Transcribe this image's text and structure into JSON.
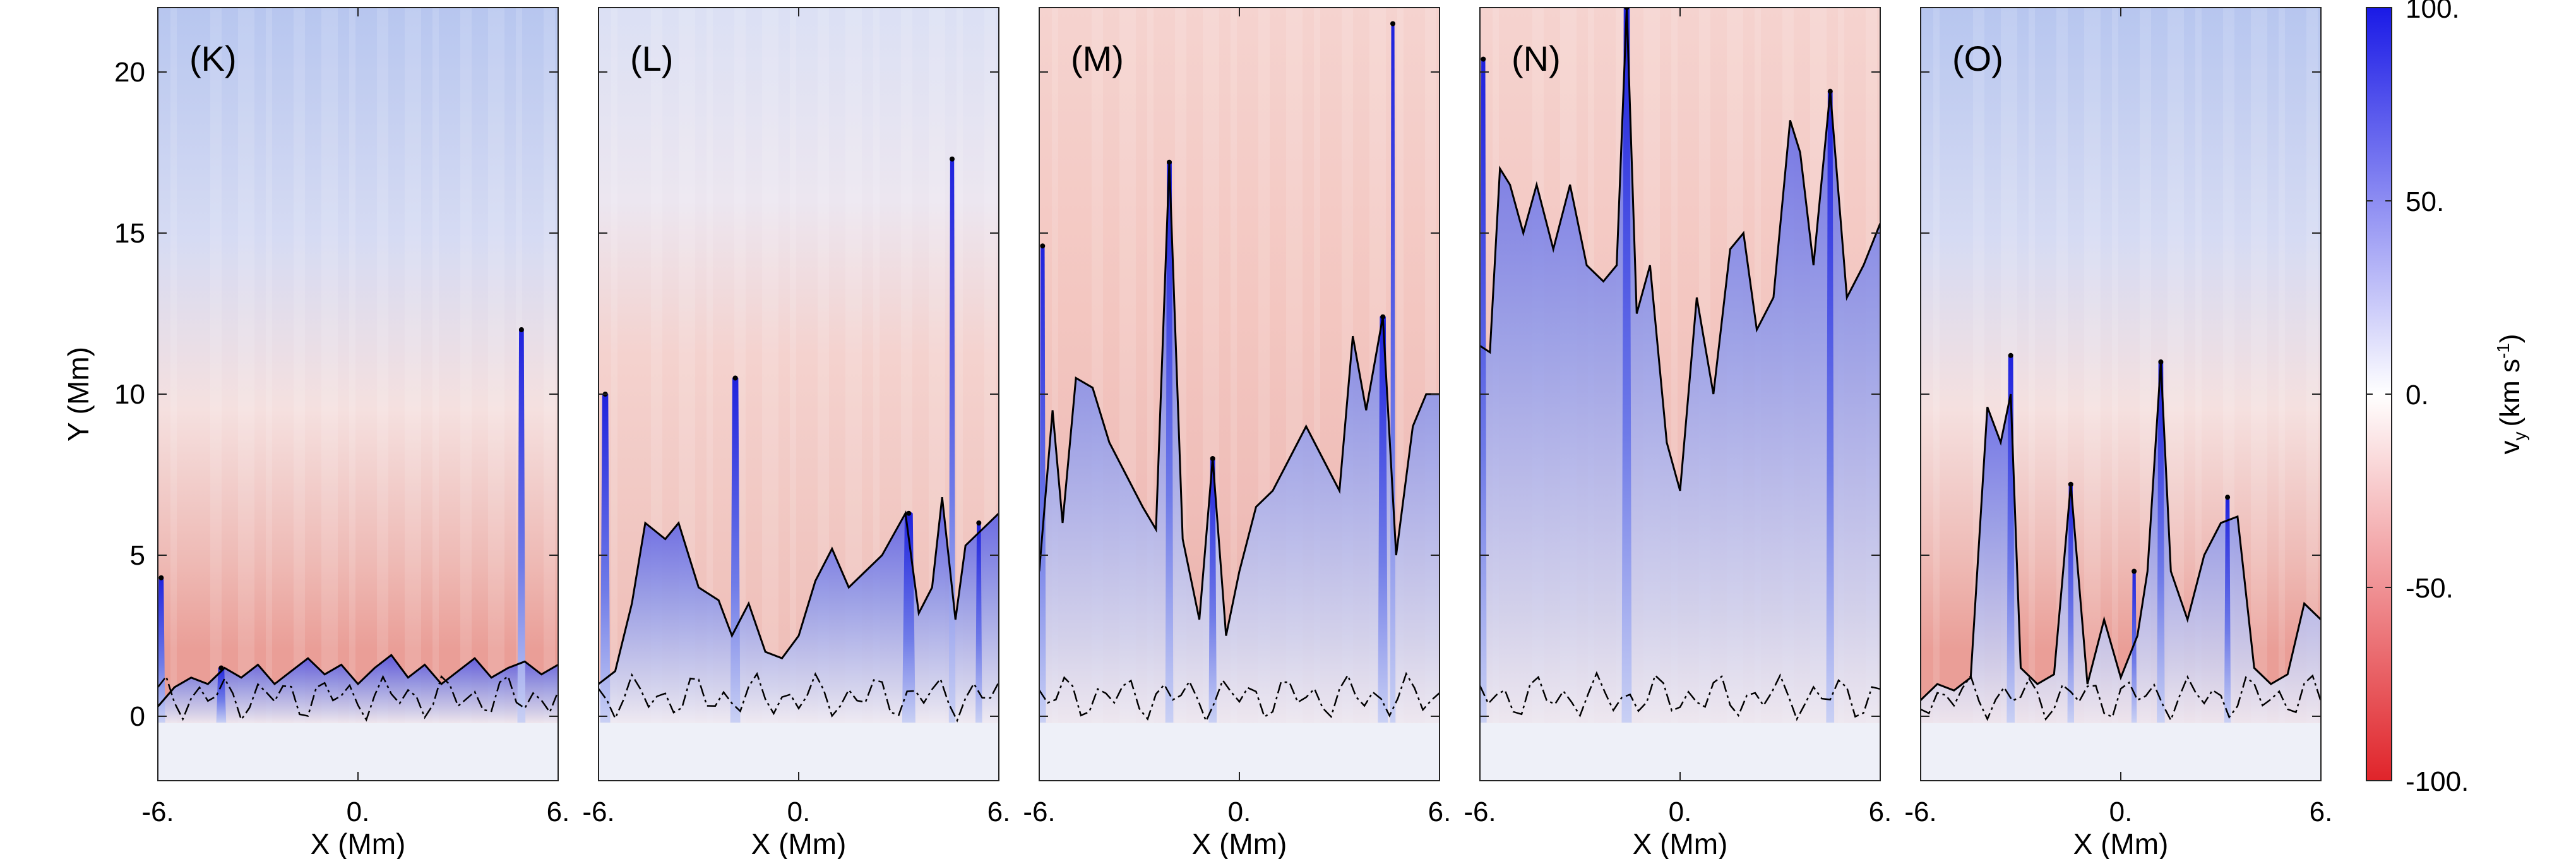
{
  "chart_data": {
    "type": "heatmap",
    "xlabel": "X (Mm)",
    "ylabel": "Y (Mm)",
    "xlim": [
      -6,
      6
    ],
    "ylim": [
      -2,
      22
    ],
    "x_ticks": [
      -6,
      0,
      6
    ],
    "x_tick_labels": [
      "-6.",
      "0.",
      "6."
    ],
    "y_ticks": [
      0,
      5,
      10,
      15,
      20
    ],
    "y_tick_labels": [
      "0",
      "5",
      "10",
      "15",
      "20"
    ],
    "panels": [
      {
        "label": "(K)",
        "top_hue": "blue",
        "boundary": [
          [
            -6,
            0.3
          ],
          [
            -5.5,
            0.9
          ],
          [
            -5,
            1.2
          ],
          [
            -4.5,
            1.0
          ],
          [
            -4,
            1.5
          ],
          [
            -3.5,
            1.2
          ],
          [
            -3,
            1.6
          ],
          [
            -2.5,
            1.0
          ],
          [
            -2,
            1.4
          ],
          [
            -1.5,
            1.8
          ],
          [
            -1,
            1.3
          ],
          [
            -0.5,
            1.6
          ],
          [
            0,
            1.0
          ],
          [
            0.5,
            1.5
          ],
          [
            1,
            1.9
          ],
          [
            1.5,
            1.2
          ],
          [
            2,
            1.6
          ],
          [
            2.5,
            1.0
          ],
          [
            3,
            1.4
          ],
          [
            3.5,
            1.8
          ],
          [
            4,
            1.2
          ],
          [
            4.5,
            1.5
          ],
          [
            5,
            1.7
          ],
          [
            5.5,
            1.3
          ],
          [
            6,
            1.6
          ]
        ],
        "jets": [
          [
            -5.9,
            4.3,
            0.12
          ],
          [
            -4.1,
            1.5,
            0.15
          ],
          [
            4.9,
            12.0,
            0.12
          ]
        ]
      },
      {
        "label": "(L)",
        "top_hue": "mixed",
        "boundary": [
          [
            -6,
            1.0
          ],
          [
            -5.5,
            1.4
          ],
          [
            -5,
            3.5
          ],
          [
            -4.6,
            6.0
          ],
          [
            -4,
            5.5
          ],
          [
            -3.6,
            6.0
          ],
          [
            -3,
            4.0
          ],
          [
            -2.4,
            3.6
          ],
          [
            -2,
            2.5
          ],
          [
            -1.5,
            3.5
          ],
          [
            -1,
            2.0
          ],
          [
            -0.5,
            1.8
          ],
          [
            0,
            2.5
          ],
          [
            0.5,
            4.2
          ],
          [
            1,
            5.2
          ],
          [
            1.5,
            4.0
          ],
          [
            2,
            4.5
          ],
          [
            2.5,
            5.0
          ],
          [
            3.2,
            6.3
          ],
          [
            3.6,
            3.2
          ],
          [
            4,
            4.0
          ],
          [
            4.3,
            6.8
          ],
          [
            4.7,
            3.0
          ],
          [
            5,
            5.3
          ],
          [
            5.5,
            5.8
          ],
          [
            6,
            6.3
          ]
        ],
        "jets": [
          [
            -5.8,
            10.0,
            0.15
          ],
          [
            -1.9,
            10.5,
            0.15
          ],
          [
            3.3,
            6.3,
            0.2
          ],
          [
            4.6,
            17.3,
            0.1
          ],
          [
            5.4,
            6.0,
            0.1
          ]
        ]
      },
      {
        "label": "(M)",
        "top_hue": "red",
        "boundary": [
          [
            -6,
            4.5
          ],
          [
            -5.6,
            9.5
          ],
          [
            -5.3,
            6.0
          ],
          [
            -4.9,
            10.5
          ],
          [
            -4.4,
            10.2
          ],
          [
            -3.9,
            8.5
          ],
          [
            -3.4,
            7.5
          ],
          [
            -2.9,
            6.5
          ],
          [
            -2.5,
            5.8
          ],
          [
            -2.1,
            17.2
          ],
          [
            -1.7,
            5.5
          ],
          [
            -1.2,
            3.0
          ],
          [
            -0.8,
            8.0
          ],
          [
            -0.4,
            2.5
          ],
          [
            0,
            4.5
          ],
          [
            0.5,
            6.5
          ],
          [
            1,
            7.0
          ],
          [
            1.5,
            8.0
          ],
          [
            2,
            9.0
          ],
          [
            2.5,
            8.0
          ],
          [
            3,
            7.0
          ],
          [
            3.4,
            11.8
          ],
          [
            3.8,
            9.5
          ],
          [
            4.3,
            12.4
          ],
          [
            4.7,
            5.0
          ],
          [
            5.2,
            9.0
          ],
          [
            5.6,
            10.0
          ],
          [
            6,
            10.0
          ]
        ],
        "jets": [
          [
            -5.9,
            14.6,
            0.1
          ],
          [
            -2.1,
            17.2,
            0.12
          ],
          [
            -0.8,
            8.0,
            0.12
          ],
          [
            4.3,
            12.4,
            0.15
          ],
          [
            4.6,
            21.5,
            0.08
          ]
        ]
      },
      {
        "label": "(N)",
        "top_hue": "red",
        "boundary": [
          [
            -6,
            11.5
          ],
          [
            -5.7,
            11.3
          ],
          [
            -5.4,
            17.0
          ],
          [
            -5.1,
            16.5
          ],
          [
            -4.7,
            15.0
          ],
          [
            -4.3,
            16.5
          ],
          [
            -3.8,
            14.5
          ],
          [
            -3.3,
            16.5
          ],
          [
            -2.8,
            14.0
          ],
          [
            -2.3,
            13.5
          ],
          [
            -1.9,
            14.0
          ],
          [
            -1.6,
            22.0
          ],
          [
            -1.3,
            12.5
          ],
          [
            -0.9,
            14.0
          ],
          [
            -0.4,
            8.5
          ],
          [
            0,
            7.0
          ],
          [
            0.5,
            13.0
          ],
          [
            1,
            10.0
          ],
          [
            1.5,
            14.5
          ],
          [
            1.9,
            15.0
          ],
          [
            2.3,
            12.0
          ],
          [
            2.8,
            13.0
          ],
          [
            3.3,
            18.5
          ],
          [
            3.6,
            17.5
          ],
          [
            4,
            14.0
          ],
          [
            4.5,
            19.4
          ],
          [
            5,
            13.0
          ],
          [
            5.5,
            14.0
          ],
          [
            6,
            15.3
          ]
        ],
        "jets": [
          [
            -5.9,
            20.4,
            0.1
          ],
          [
            -1.6,
            22.0,
            0.15
          ],
          [
            4.5,
            19.4,
            0.12
          ]
        ]
      },
      {
        "label": "(O)",
        "top_hue": "blue",
        "boundary": [
          [
            -6,
            0.5
          ],
          [
            -5.5,
            1.0
          ],
          [
            -5,
            0.8
          ],
          [
            -4.5,
            1.2
          ],
          [
            -4,
            9.6
          ],
          [
            -3.6,
            8.5
          ],
          [
            -3.3,
            10.0
          ],
          [
            -3,
            1.5
          ],
          [
            -2.5,
            1.0
          ],
          [
            -2,
            1.3
          ],
          [
            -1.5,
            7.2
          ],
          [
            -1,
            1.0
          ],
          [
            -0.5,
            3.0
          ],
          [
            0,
            1.2
          ],
          [
            0.5,
            2.5
          ],
          [
            0.8,
            4.5
          ],
          [
            1.2,
            11.0
          ],
          [
            1.5,
            4.5
          ],
          [
            2,
            3.0
          ],
          [
            2.5,
            5.0
          ],
          [
            3,
            6.0
          ],
          [
            3.5,
            6.2
          ],
          [
            4,
            1.5
          ],
          [
            4.5,
            1.0
          ],
          [
            5,
            1.3
          ],
          [
            5.5,
            3.5
          ],
          [
            6,
            3.0
          ]
        ],
        "jets": [
          [
            -3.3,
            11.2,
            0.12
          ],
          [
            -1.5,
            7.2,
            0.1
          ],
          [
            1.2,
            11.0,
            0.12
          ],
          [
            0.4,
            4.5,
            0.08
          ],
          [
            3.2,
            6.8,
            0.1
          ]
        ]
      }
    ],
    "colorbar": {
      "label": "v",
      "label_sub": "y",
      "label_units": "(km s",
      "label_sup": "-1",
      "label_end": ")",
      "range": [
        -100,
        100
      ],
      "ticks": [
        100,
        50,
        0,
        -50,
        -100
      ],
      "tick_labels": [
        "100.",
        "50.",
        "0.",
        "-50.",
        "-100."
      ],
      "colors": {
        "negative": "#e0242a",
        "zero": "#ffffff",
        "positive": "#1a1ae6"
      }
    }
  }
}
